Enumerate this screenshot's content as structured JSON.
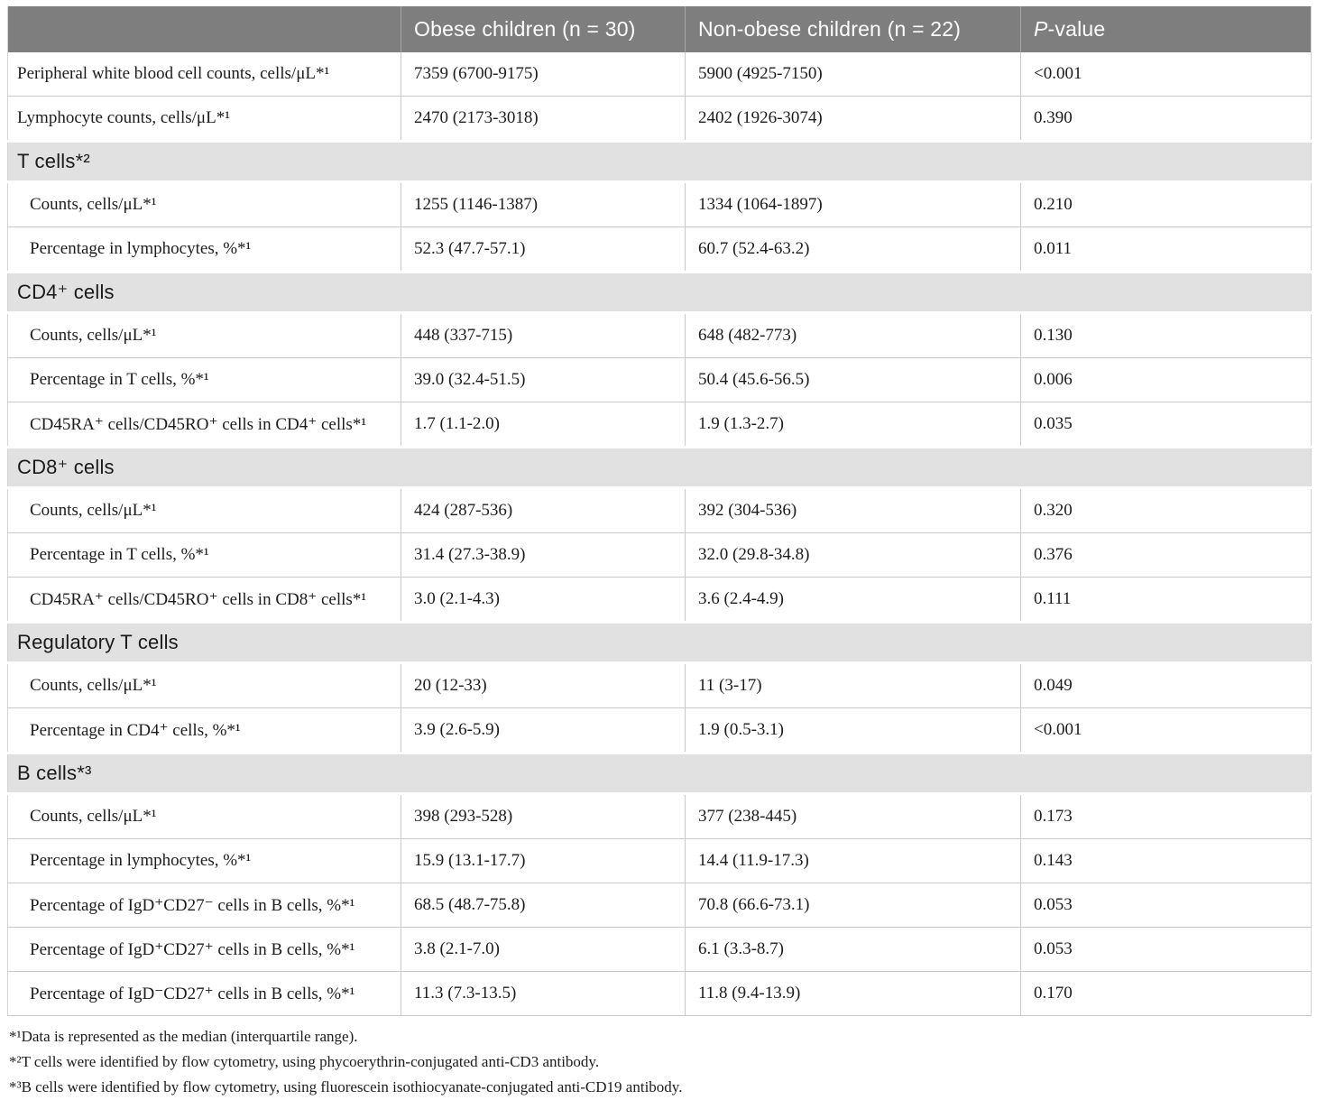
{
  "table": {
    "header": {
      "col_label": "",
      "col_obese": "Obese children (n = 30)",
      "col_nonobese": "Non-obese children (n = 22)",
      "pvalue_italic": "P",
      "pvalue_rest": "-value"
    },
    "rows": [
      {
        "type": "data",
        "indent": false,
        "label": "Peripheral white blood cell counts, cells/μL*¹",
        "obese": "7359 (6700-9175)",
        "nonobese": "5900 (4925-7150)",
        "p": "<0.001"
      },
      {
        "type": "data",
        "indent": false,
        "label": "Lymphocyte counts, cells/μL*¹",
        "obese": "2470 (2173-3018)",
        "nonobese": "2402 (1926-3074)",
        "p": "0.390"
      },
      {
        "type": "section",
        "label": "T cells*²"
      },
      {
        "type": "data",
        "indent": true,
        "label": "Counts, cells/μL*¹",
        "obese": "1255 (1146-1387)",
        "nonobese": "1334 (1064-1897)",
        "p": "0.210"
      },
      {
        "type": "data",
        "indent": true,
        "label": "Percentage in lymphocytes, %*¹",
        "obese": "52.3 (47.7-57.1)",
        "nonobese": "60.7 (52.4-63.2)",
        "p": "0.011"
      },
      {
        "type": "section",
        "label": "CD4⁺ cells"
      },
      {
        "type": "data",
        "indent": true,
        "label": "Counts, cells/μL*¹",
        "obese": "448 (337-715)",
        "nonobese": "648 (482-773)",
        "p": "0.130"
      },
      {
        "type": "data",
        "indent": true,
        "label": "Percentage in T cells, %*¹",
        "obese": "39.0 (32.4-51.5)",
        "nonobese": "50.4 (45.6-56.5)",
        "p": "0.006"
      },
      {
        "type": "data",
        "indent": true,
        "label": "CD45RA⁺ cells/CD45RO⁺ cells in CD4⁺ cells*¹",
        "obese": "1.7 (1.1-2.0)",
        "nonobese": "1.9 (1.3-2.7)",
        "p": "0.035"
      },
      {
        "type": "section",
        "label": "CD8⁺ cells"
      },
      {
        "type": "data",
        "indent": true,
        "label": "Counts, cells/μL*¹",
        "obese": "424 (287-536)",
        "nonobese": "392 (304-536)",
        "p": "0.320"
      },
      {
        "type": "data",
        "indent": true,
        "label": "Percentage in T cells, %*¹",
        "obese": "31.4 (27.3-38.9)",
        "nonobese": "32.0 (29.8-34.8)",
        "p": "0.376"
      },
      {
        "type": "data",
        "indent": true,
        "label": "CD45RA⁺ cells/CD45RO⁺ cells in CD8⁺ cells*¹",
        "obese": "3.0 (2.1-4.3)",
        "nonobese": "3.6 (2.4-4.9)",
        "p": "0.111"
      },
      {
        "type": "section",
        "label": "Regulatory T cells"
      },
      {
        "type": "data",
        "indent": true,
        "label": "Counts, cells/μL*¹",
        "obese": "20 (12-33)",
        "nonobese": "11 (3-17)",
        "p": "0.049"
      },
      {
        "type": "data",
        "indent": true,
        "label": "Percentage in CD4⁺ cells, %*¹",
        "obese": "3.9 (2.6-5.9)",
        "nonobese": "1.9 (0.5-3.1)",
        "p": "<0.001"
      },
      {
        "type": "section",
        "label": "B cells*³"
      },
      {
        "type": "data",
        "indent": true,
        "label": "Counts, cells/μL*¹",
        "obese": "398 (293-528)",
        "nonobese": "377 (238-445)",
        "p": "0.173"
      },
      {
        "type": "data",
        "indent": true,
        "label": "Percentage in lymphocytes, %*¹",
        "obese": "15.9 (13.1-17.7)",
        "nonobese": "14.4 (11.9-17.3)",
        "p": "0.143"
      },
      {
        "type": "data",
        "indent": true,
        "label": "Percentage of IgD⁺CD27⁻ cells in B cells, %*¹",
        "obese": "68.5 (48.7-75.8)",
        "nonobese": "70.8 (66.6-73.1)",
        "p": "0.053"
      },
      {
        "type": "data",
        "indent": true,
        "label": "Percentage of IgD⁺CD27⁺ cells in B cells, %*¹",
        "obese": "3.8 (2.1-7.0)",
        "nonobese": "6.1 (3.3-8.7)",
        "p": "0.053"
      },
      {
        "type": "data",
        "indent": true,
        "label": "Percentage of IgD⁻CD27⁺ cells in B cells, %*¹",
        "obese": "11.3 (7.3-13.5)",
        "nonobese": "11.8 (9.4-13.9)",
        "p": "0.170"
      }
    ],
    "footnotes": [
      "*¹Data is represented as the median (interquartile range).",
      "*²T cells were identified by flow cytometry, using phycoerythrin-conjugated anti-CD3 antibody.",
      "*³B cells were identified by flow cytometry, using fluorescein isothiocyanate-conjugated anti-CD19 antibody."
    ],
    "colors": {
      "header_bg": "#7e7e7e",
      "header_text": "#ffffff",
      "section_bg": "#e1e1e1",
      "row_border": "#c9c9c9",
      "text": "#1c1c1c"
    }
  }
}
